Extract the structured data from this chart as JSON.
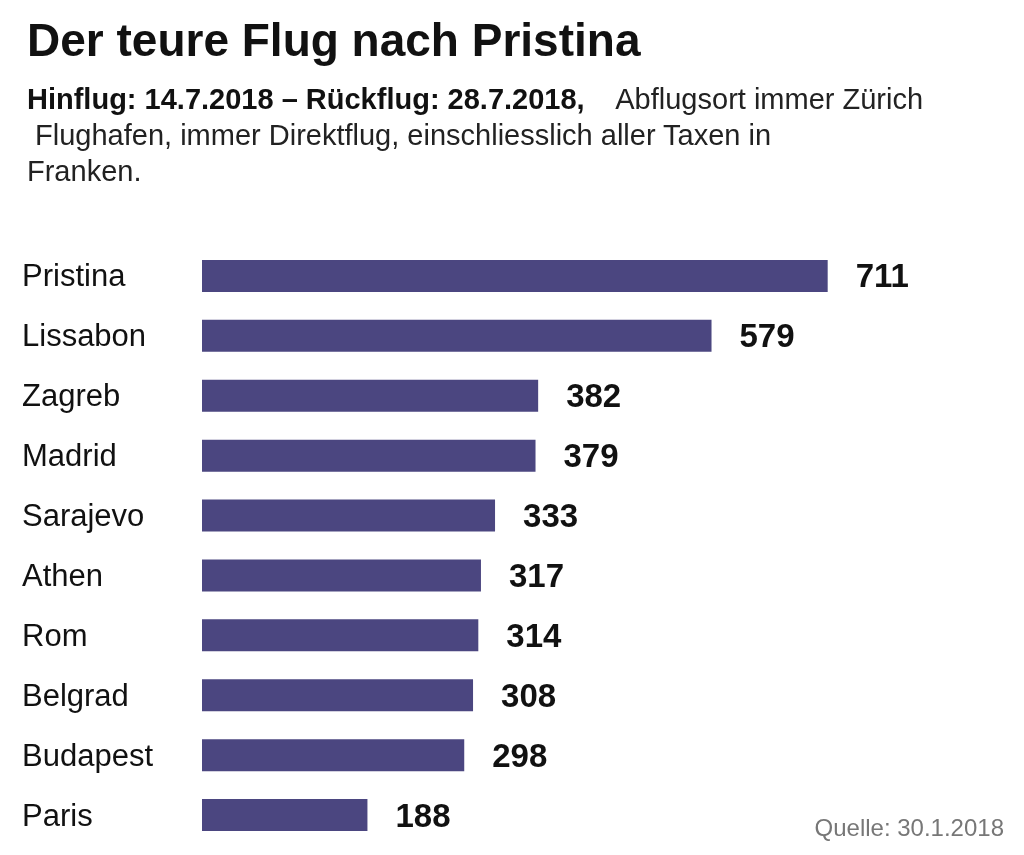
{
  "chart_data": {
    "type": "bar",
    "orientation": "horizontal",
    "title": "Der teure Flug nach Pristina",
    "subtitle": "Hinflug: 14.7.2018 – Rückflug: 28.7.2018, Abflugsort immer Zürich Flughafen, immer Direktflug, einschliesslich aller Taxen in Franken.",
    "categories": [
      "Pristina",
      "Lissabon",
      "Zagreb",
      "Madrid",
      "Sarajevo",
      "Athen",
      "Rom",
      "Belgrad",
      "Budapest",
      "Paris"
    ],
    "values": [
      711,
      579,
      382,
      379,
      333,
      317,
      314,
      308,
      298,
      188
    ],
    "color": "#4b4680",
    "data_labels": true,
    "annotations": [
      "Quelle: 30.1.2018"
    ]
  }
}
